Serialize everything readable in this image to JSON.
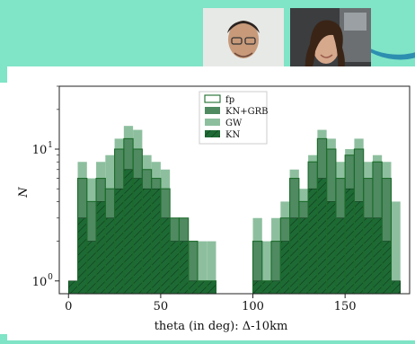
{
  "people": {
    "photo_1": {
      "icon": "person-photo-man"
    },
    "photo_2": {
      "icon": "person-photo-woman"
    }
  },
  "chart_data": {
    "type": "bar",
    "xlabel": "theta (in deg): Δ-10km",
    "ylabel": "N",
    "yscale": "log",
    "xlim": [
      -5,
      185
    ],
    "ylim": [
      0.8,
      30
    ],
    "x_ticks": [
      "0",
      "50",
      "100",
      "150"
    ],
    "y_ticks": [
      "10",
      "10"
    ],
    "y_tick_exponents": [
      "0",
      "1"
    ],
    "bin_width": 5,
    "x": [
      0,
      5,
      10,
      15,
      20,
      25,
      30,
      35,
      40,
      45,
      50,
      55,
      60,
      65,
      70,
      75,
      80,
      85,
      90,
      95,
      100,
      105,
      110,
      115,
      120,
      125,
      130,
      135,
      140,
      145,
      150,
      155,
      160,
      165,
      170,
      175
    ],
    "series": [
      {
        "name": "fp",
        "style": "outline",
        "color": "#1d6b2c",
        "values": [
          0,
          6,
          4,
          6,
          5,
          10,
          12,
          10,
          7,
          6,
          5,
          3,
          3,
          2,
          1,
          1,
          0,
          0,
          0,
          0,
          2,
          1,
          2,
          3,
          6,
          4,
          8,
          12,
          10,
          6,
          9,
          10,
          6,
          8,
          6,
          0
        ]
      },
      {
        "name": "KN+GRB",
        "style": "filled",
        "color": "#4f8a61",
        "values": [
          0,
          6,
          4,
          6,
          5,
          10,
          12,
          10,
          7,
          6,
          5,
          3,
          3,
          2,
          1,
          1,
          0,
          0,
          0,
          0,
          2,
          1,
          2,
          3,
          6,
          4,
          8,
          12,
          10,
          6,
          9,
          10,
          6,
          8,
          6,
          0
        ]
      },
      {
        "name": "GW",
        "style": "filled",
        "color": "#8dbf9e",
        "values": [
          0,
          8,
          6,
          8,
          9,
          12,
          15,
          14,
          9,
          8,
          7,
          3,
          3,
          2,
          2,
          2,
          0,
          0,
          0,
          0,
          3,
          2,
          3,
          4,
          7,
          5,
          9,
          14,
          12,
          8,
          10,
          12,
          8,
          9,
          8,
          4
        ]
      },
      {
        "name": "KN",
        "style": "filled-hatched",
        "color": "#1e6a35",
        "values": [
          1,
          3,
          2,
          4,
          3,
          5,
          7,
          6,
          5,
          5,
          3,
          2,
          2,
          1,
          1,
          1,
          0,
          0,
          0,
          0,
          1,
          1,
          1,
          2,
          3,
          3,
          5,
          6,
          4,
          3,
          5,
          4,
          3,
          3,
          2,
          1
        ]
      }
    ],
    "legend_position": "top-center",
    "grid": false
  }
}
